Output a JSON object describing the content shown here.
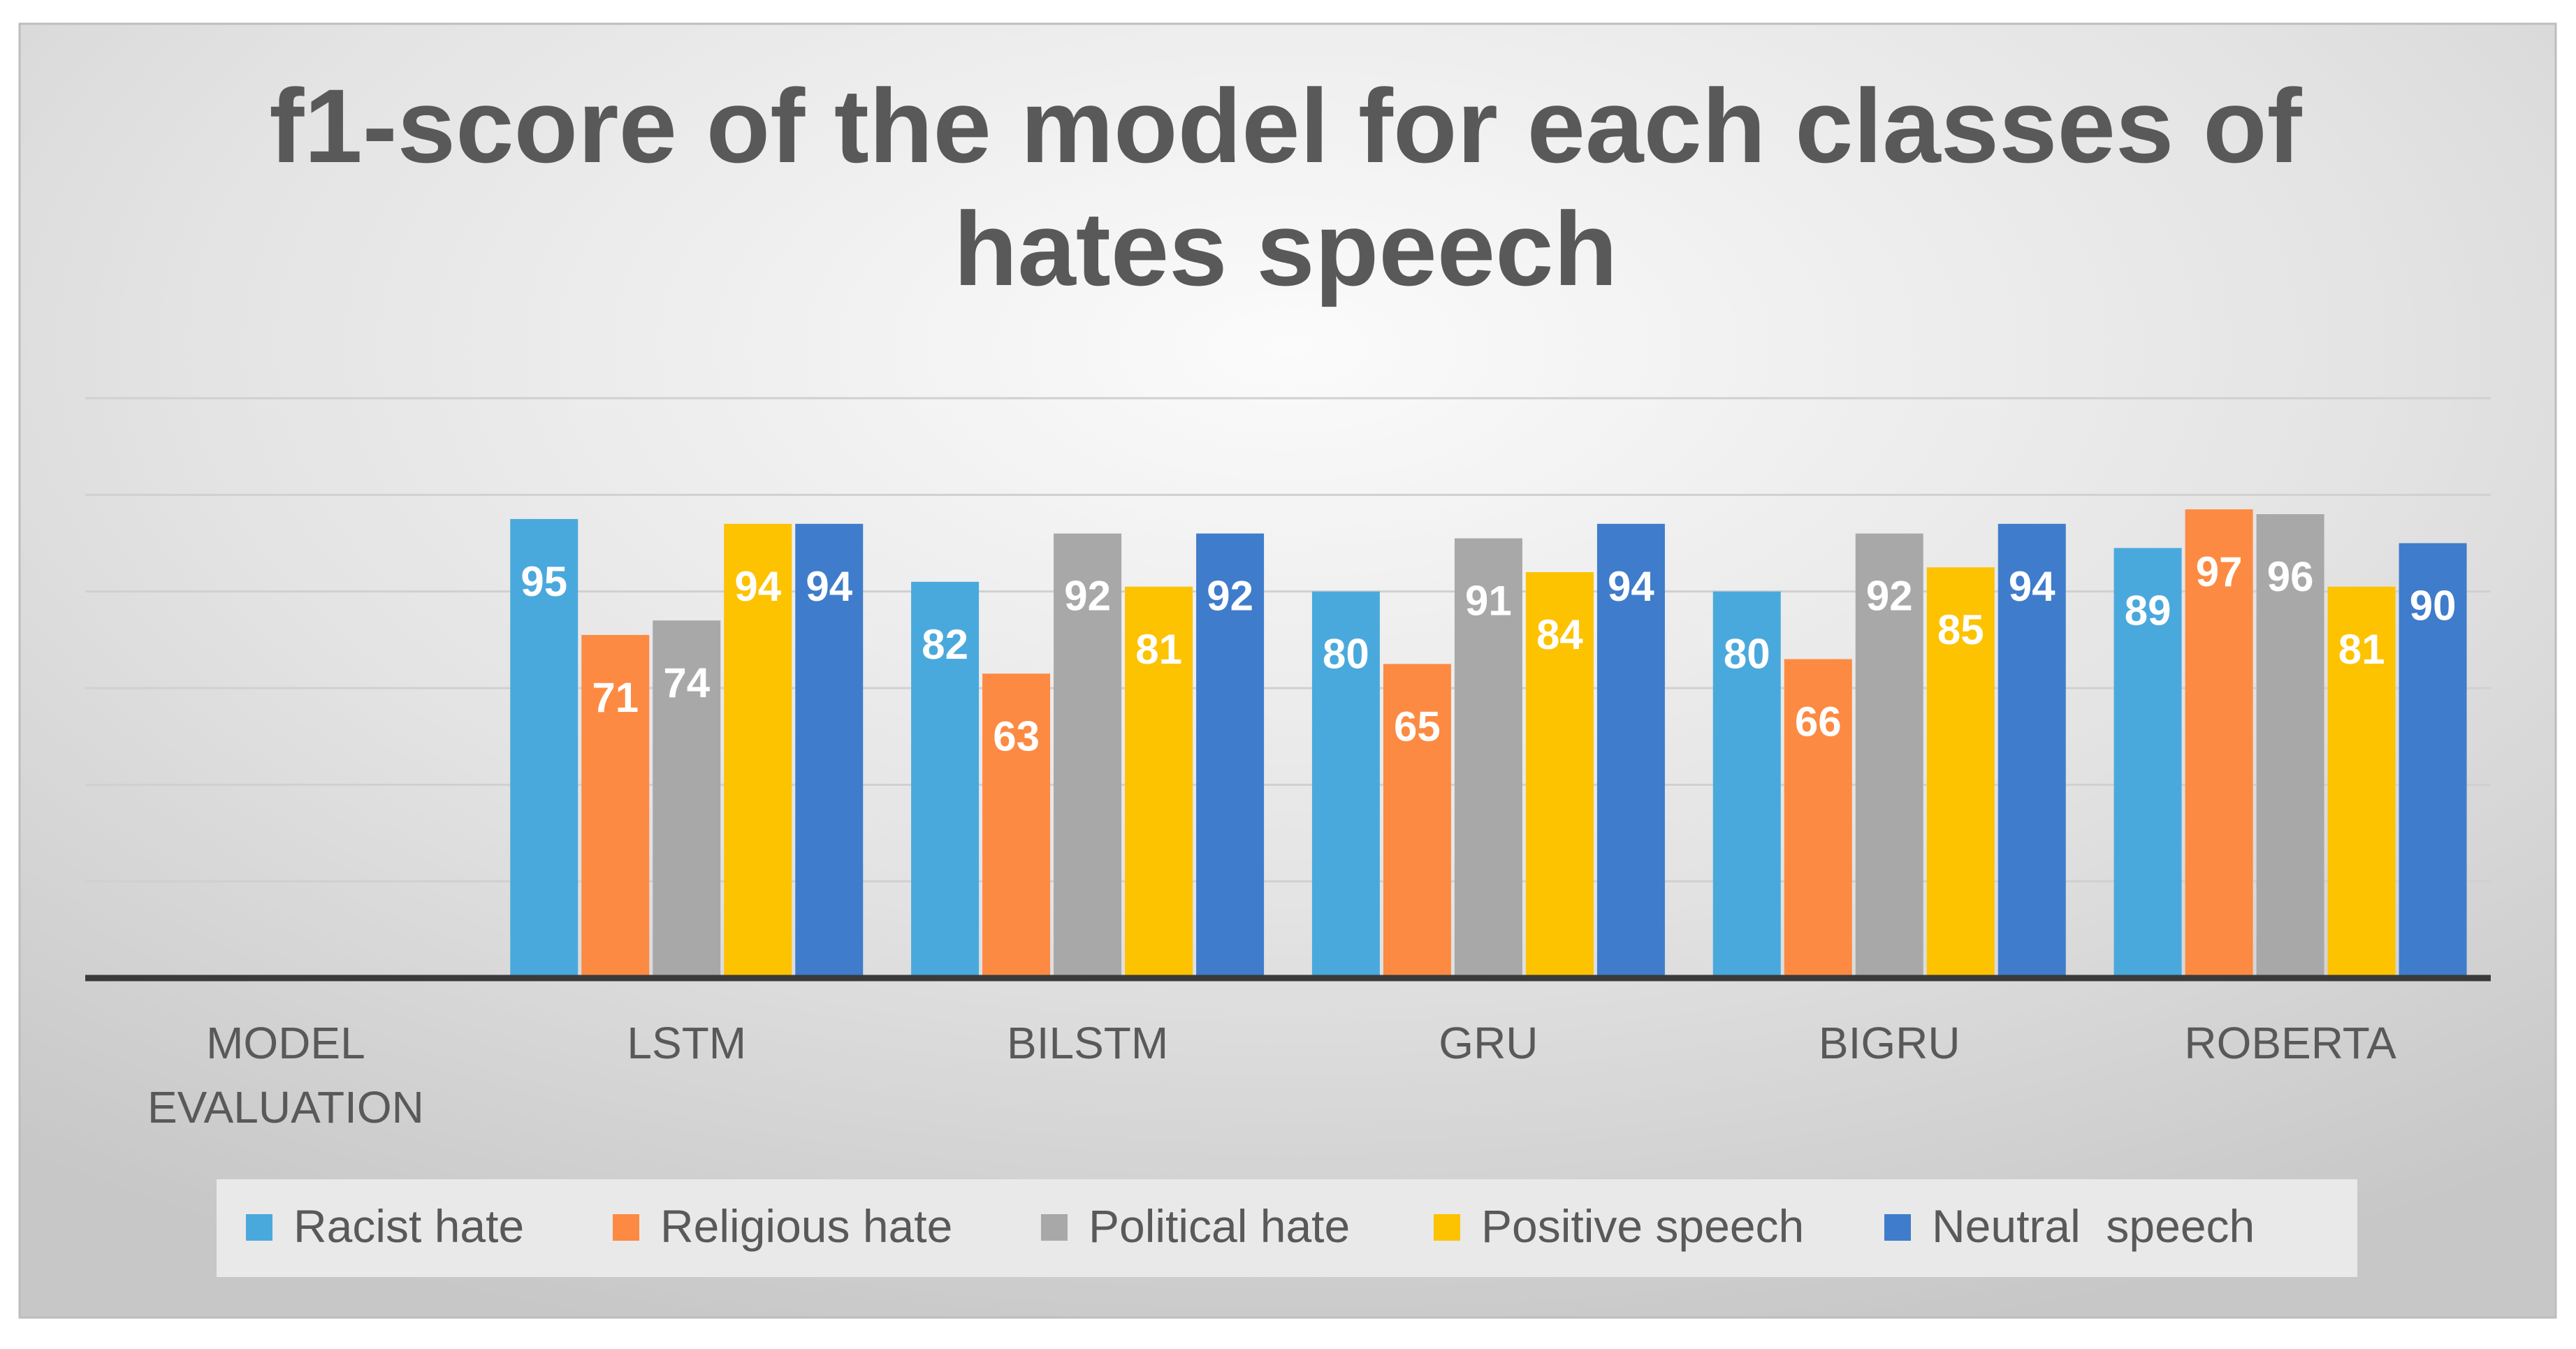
{
  "colors": {
    "racist": "#4aa9dc",
    "religious": "#fd8a42",
    "political": "#a8a8a8",
    "positive": "#fdc200",
    "neutral": "#3f7ccb",
    "title_text": "#595959",
    "axis_text": "#595959",
    "bar_label": "#ffffff",
    "gridline": "#d0d0d0",
    "axis_line": "#3a3a3a",
    "legend_bg": "#e9e9e9"
  },
  "chart_data": {
    "type": "bar",
    "title_lines": [
      "f1-score of the model for each classes of",
      "hates speech"
    ],
    "categories": [
      [
        "MODEL",
        "EVALUATION"
      ],
      [
        "LSTM"
      ],
      [
        "BILSTM"
      ],
      [
        "GRU"
      ],
      [
        "BIGRU"
      ],
      [
        "ROBERTA"
      ]
    ],
    "series": [
      {
        "name": "Racist hate",
        "color_key": "racist",
        "values": [
          null,
          95,
          82,
          80,
          80,
          89
        ]
      },
      {
        "name": "Religious hate",
        "color_key": "religious",
        "values": [
          null,
          71,
          63,
          65,
          66,
          97
        ]
      },
      {
        "name": "Political hate",
        "color_key": "political",
        "values": [
          null,
          74,
          92,
          91,
          92,
          96
        ]
      },
      {
        "name": "Positive speech",
        "color_key": "positive",
        "values": [
          null,
          94,
          81,
          84,
          85,
          81
        ]
      },
      {
        "name": "Neutral  speech",
        "color_key": "neutral",
        "values": [
          null,
          94,
          92,
          94,
          94,
          90
        ]
      }
    ],
    "ylim": [
      0,
      120
    ],
    "y_gridline_step": 20,
    "y_tick_labels_shown": false,
    "xlabel": "",
    "ylabel": "",
    "legend_position": "bottom"
  }
}
